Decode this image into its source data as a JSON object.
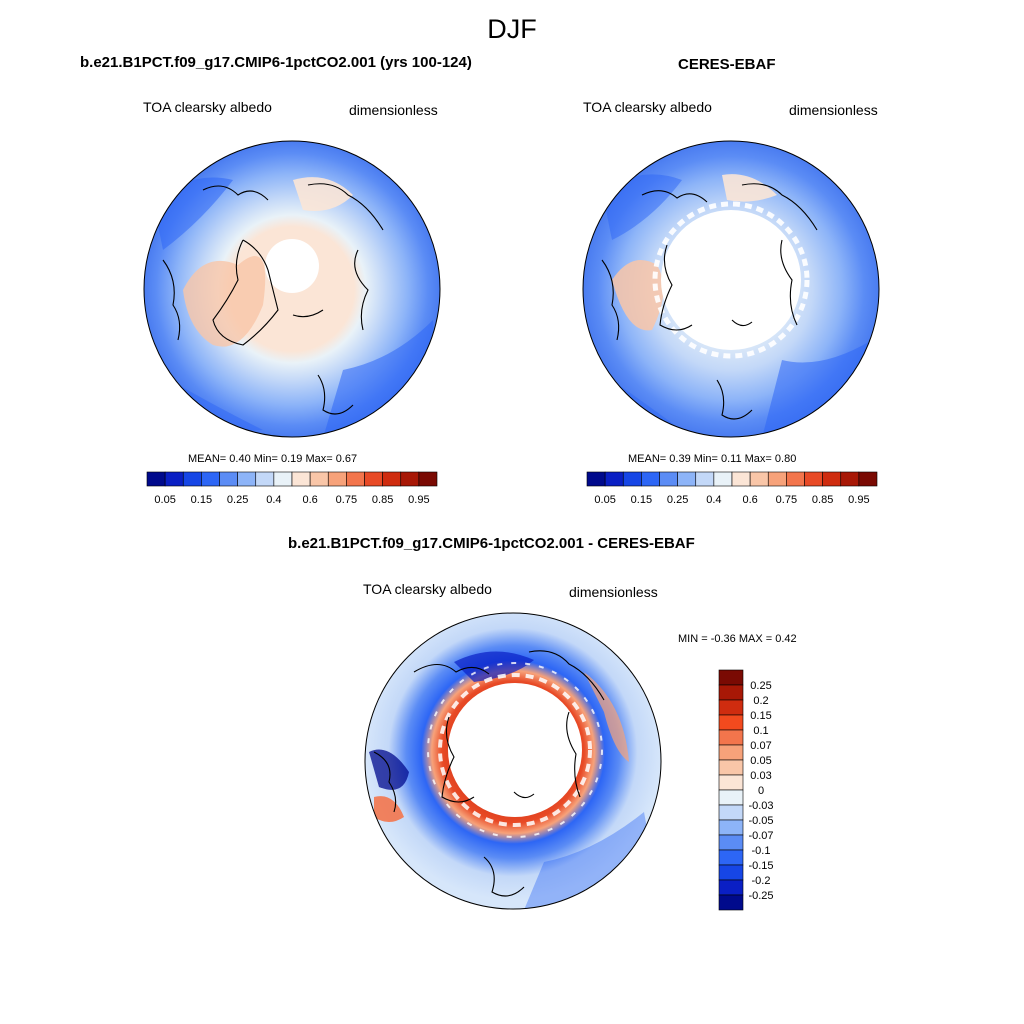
{
  "season": "DJF",
  "panels": [
    {
      "title": "b.e21.B1PCT.f09_g17.CMIP6-1pctCO2.001 (yrs 100-124)",
      "left_label": "TOA clearsky albedo",
      "right_label": "dimensionless",
      "stats": {
        "mean_label": "MEAN=",
        "mean": "0.40",
        "min_label": "Min=",
        "min": "0.19",
        "max_label": "Max=",
        "max": "0.67"
      }
    },
    {
      "title": "CERES-EBAF",
      "left_label": "TOA clearsky albedo",
      "right_label": "dimensionless",
      "stats": {
        "mean_label": "MEAN=",
        "mean": "0.39",
        "min_label": "Min=",
        "min": "0.11",
        "max_label": "Max=",
        "max": "0.80"
      }
    },
    {
      "title": "b.e21.B1PCT.f09_g17.CMIP6-1pctCO2.001 - CERES-EBAF",
      "left_label": "TOA clearsky albedo",
      "right_label": "dimensionless",
      "stats": {
        "min_label": "MIN =",
        "min": "-0.36",
        "max_label": "MAX =",
        "max": "0.42"
      }
    }
  ],
  "colorbar_abs": {
    "labels": [
      "0.05",
      "0.15",
      "0.25",
      "0.4",
      "0.6",
      "0.75",
      "0.85",
      "0.95"
    ],
    "colors": [
      "#000a8c",
      "#0a1fc4",
      "#1646e6",
      "#2d66f5",
      "#5b8cf5",
      "#8db4f8",
      "#c3d8f8",
      "#e9f2f8",
      "#fbe5d6",
      "#f9c6a8",
      "#f7a27a",
      "#f3754c",
      "#e84a26",
      "#cf2c0f",
      "#a81806",
      "#7a0a03"
    ]
  },
  "colorbar_diff": {
    "labels": [
      "0.25",
      "0.2",
      "0.15",
      "0.1",
      "0.07",
      "0.05",
      "0.03",
      "0",
      "-0.03",
      "-0.05",
      "-0.07",
      "-0.1",
      "-0.15",
      "-0.2",
      "-0.25"
    ],
    "colors": [
      "#7a0a03",
      "#a81806",
      "#cf2c0f",
      "#f24a1e",
      "#f3754c",
      "#f7a27a",
      "#f9c6a8",
      "#fbe5d6",
      "#e9f2f8",
      "#c3d8f8",
      "#8db4f8",
      "#5b8cf5",
      "#2d66f5",
      "#1646e6",
      "#0a1fc4",
      "#000a8c"
    ]
  }
}
